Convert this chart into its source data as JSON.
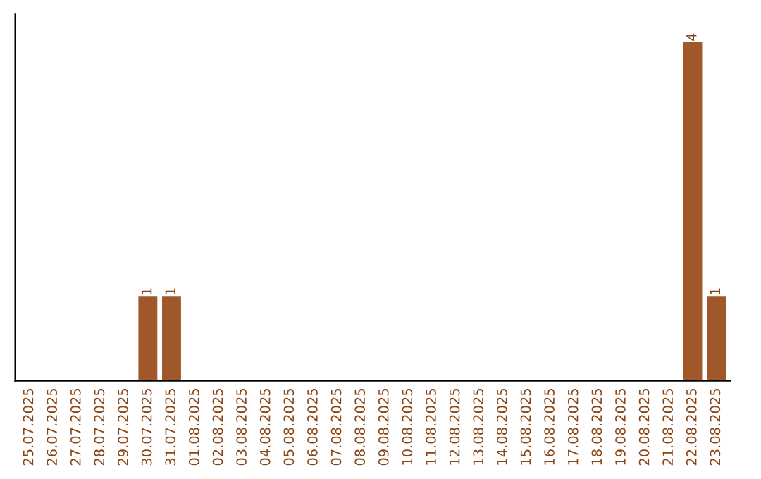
{
  "chart_data": {
    "type": "bar",
    "categories": [
      "25.07.2025",
      "26.07.2025",
      "27.07.2025",
      "28.07.2025",
      "29.07.2025",
      "30.07.2025",
      "31.07.2025",
      "01.08.2025",
      "02.08.2025",
      "03.08.2025",
      "04.08.2025",
      "05.08.2025",
      "06.08.2025",
      "07.08.2025",
      "08.08.2025",
      "09.08.2025",
      "10.08.2025",
      "11.08.2025",
      "12.08.2025",
      "13.08.2025",
      "14.08.2025",
      "15.08.2025",
      "16.08.2025",
      "17.08.2025",
      "18.08.2025",
      "19.08.2025",
      "20.08.2025",
      "21.08.2025",
      "22.08.2025",
      "23.08.2025"
    ],
    "values": [
      0,
      0,
      0,
      0,
      0,
      1,
      1,
      0,
      0,
      0,
      0,
      0,
      0,
      0,
      0,
      0,
      0,
      0,
      0,
      0,
      0,
      0,
      0,
      0,
      0,
      0,
      0,
      0,
      4,
      1
    ],
    "value_labels": [
      null,
      null,
      null,
      null,
      null,
      "1",
      "1",
      null,
      null,
      null,
      null,
      null,
      null,
      null,
      null,
      null,
      null,
      null,
      null,
      null,
      null,
      null,
      null,
      null,
      null,
      null,
      null,
      null,
      "4",
      "1"
    ],
    "color": "#a0582a",
    "tick_labels": "x",
    "grid": false,
    "legend": false
  }
}
